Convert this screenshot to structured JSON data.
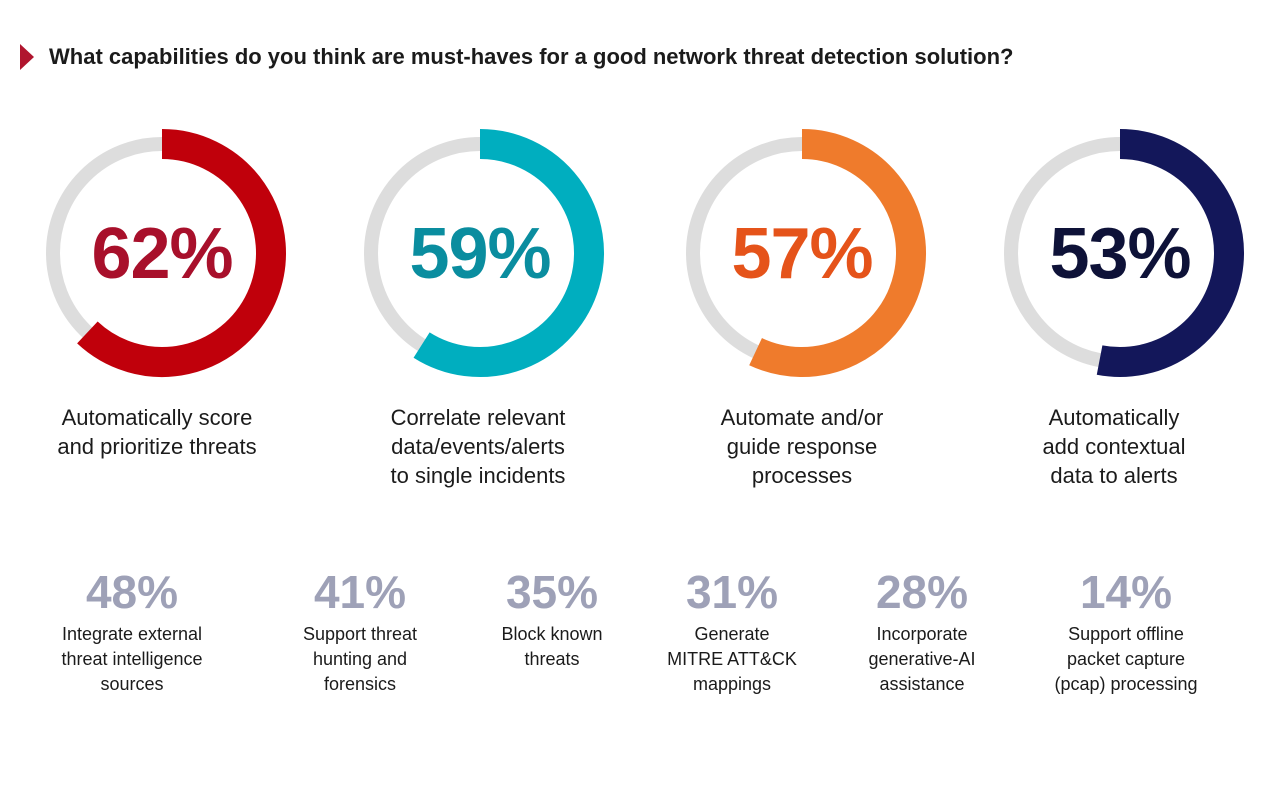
{
  "title": "What capabilities do you think are must-haves for a good network threat detection solution?",
  "colors": {
    "marker": "#b0152e",
    "track": "#dddddd",
    "minor_value": "#9ea1b7"
  },
  "chart_data": {
    "type": "donut",
    "title": "What capabilities do you think are must-haves for a good network threat detection solution?",
    "featured": [
      {
        "value": 62,
        "display": "62%",
        "label": "Automatically score and prioritize threats",
        "label_lines": [
          "Automatically score",
          "and prioritize threats"
        ],
        "ring_color": "#c0000b",
        "text_color": "#a8102b"
      },
      {
        "value": 59,
        "display": "59%",
        "label": "Correlate relevant data/events/alerts to single incidents",
        "label_lines": [
          "Correlate relevant",
          "data/events/alerts",
          "to single incidents"
        ],
        "ring_color": "#00aebf",
        "text_color": "#0a8d9f"
      },
      {
        "value": 57,
        "display": "57%",
        "label": "Automate and/or guide response processes",
        "label_lines": [
          "Automate and/or",
          "guide response",
          "processes"
        ],
        "ring_color": "#ef7b2c",
        "text_color": "#e5531a"
      },
      {
        "value": 53,
        "display": "53%",
        "label": "Automatically add contextual data to alerts",
        "label_lines": [
          "Automatically",
          "add contextual",
          "data to alerts"
        ],
        "ring_color": "#13175a",
        "text_color": "#0e1238"
      }
    ],
    "others": [
      {
        "value": 48,
        "display": "48%",
        "label": "Integrate external threat intelligence sources",
        "label_lines": [
          "Integrate external",
          "threat intelligence",
          "sources"
        ]
      },
      {
        "value": 41,
        "display": "41%",
        "label": "Support threat hunting and forensics",
        "label_lines": [
          "Support threat",
          "hunting and",
          "forensics"
        ]
      },
      {
        "value": 35,
        "display": "35%",
        "label": "Block known threats",
        "label_lines": [
          "Block known",
          "threats"
        ]
      },
      {
        "value": 31,
        "display": "31%",
        "label": "Generate MITRE ATT&CK mappings",
        "label_lines": [
          "Generate",
          "MITRE ATT&CK",
          "mappings"
        ]
      },
      {
        "value": 28,
        "display": "28%",
        "label": "Incorporate generative-AI assistance",
        "label_lines": [
          "Incorporate",
          "generative-AI",
          "assistance"
        ]
      },
      {
        "value": 14,
        "display": "14%",
        "label": "Support offline packet capture (pcap) processing",
        "label_lines": [
          "Support offline",
          "packet capture",
          "(pcap) processing"
        ]
      }
    ]
  }
}
